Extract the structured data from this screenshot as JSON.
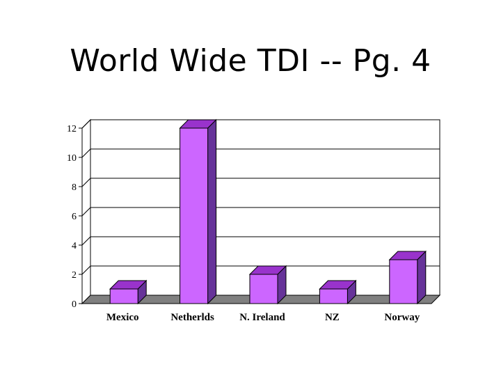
{
  "slide": {
    "title": "World Wide TDI -- Pg. 4"
  },
  "colors": {
    "bar_front": "#CC66FF",
    "bar_top": "#9933CC",
    "bar_side": "#663399",
    "floor": "#808080",
    "grid": "#000000",
    "background": "#FFFFFF"
  },
  "chart_data": {
    "type": "bar",
    "title": "",
    "xlabel": "",
    "ylabel": "",
    "categories": [
      "Mexico",
      "Netherlds",
      "N. Ireland",
      "NZ",
      "Norway"
    ],
    "values": [
      1,
      12,
      2,
      1,
      3
    ],
    "ylim": [
      0,
      12
    ],
    "yticks": [
      0,
      2,
      4,
      6,
      8,
      10,
      12
    ],
    "grid": true,
    "legend": "none",
    "style": "3d-column"
  }
}
